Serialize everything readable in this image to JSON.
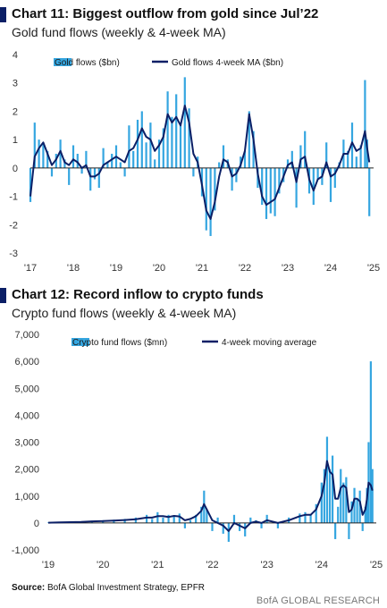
{
  "charts": [
    {
      "title": "Chart 11: Biggest outflow from gold since Jul’22",
      "subtitle": "Gold fund flows (weekly & 4-week MA)",
      "legend": {
        "bars": "Gold flows ($bn)",
        "line": "Gold flows 4-week MA ($bn)"
      },
      "y_ticks": [
        "4",
        "3",
        "2",
        "1",
        "0",
        "-1",
        "-2",
        "-3"
      ],
      "x_ticks": [
        "'17",
        "'18",
        "'19",
        "'20",
        "'21",
        "'22",
        "'23",
        "'24",
        "'25"
      ]
    },
    {
      "title": "Chart 12: Record inflow to crypto funds",
      "subtitle": "Crypto fund flows (weekly & 4-week MA)",
      "legend": {
        "bars": "Crypto fund flows ($mn)",
        "line": "4-week moving average"
      },
      "y_ticks": [
        "7,000",
        "6,000",
        "5,000",
        "4,000",
        "3,000",
        "2,000",
        "1,000",
        "0",
        "-1,000"
      ],
      "x_ticks": [
        "'19",
        "'20",
        "'21",
        "'22",
        "'23",
        "'24",
        "'25"
      ]
    }
  ],
  "footer": {
    "source_label": "Source:",
    "source_text": "BofA Global Investment Strategy, EPFR",
    "brand": "BofA GLOBAL RESEARCH"
  },
  "colors": {
    "bars": "#35a6e0",
    "line": "#0b1f66",
    "marker": "#0b1f66"
  },
  "chart_data": [
    {
      "type": "bar",
      "title": "Chart 11: Biggest outflow from gold since Jul’22",
      "subtitle": "Gold fund flows (weekly & 4-week MA)",
      "ylim": [
        -3,
        4
      ],
      "x_range": [
        2017,
        2025
      ],
      "x_ticks": [
        "'17",
        "'18",
        "'19",
        "'20",
        "'21",
        "'22",
        "'23",
        "'24",
        "'25"
      ],
      "y_ticks": [
        4,
        3,
        2,
        1,
        0,
        -1,
        -2,
        -3
      ],
      "grid": false,
      "legend_position": "top",
      "series": [
        {
          "name": "Gold flows ($bn)",
          "type": "bar",
          "x": [
            2017.0,
            2017.1,
            2017.2,
            2017.3,
            2017.4,
            2017.5,
            2017.6,
            2017.7,
            2017.8,
            2017.9,
            2018.0,
            2018.1,
            2018.2,
            2018.3,
            2018.4,
            2018.5,
            2018.6,
            2018.7,
            2018.8,
            2018.9,
            2019.0,
            2019.1,
            2019.2,
            2019.3,
            2019.4,
            2019.5,
            2019.6,
            2019.7,
            2019.8,
            2019.9,
            2020.0,
            2020.1,
            2020.2,
            2020.3,
            2020.4,
            2020.5,
            2020.6,
            2020.7,
            2020.8,
            2020.9,
            2021.0,
            2021.1,
            2021.2,
            2021.3,
            2021.4,
            2021.5,
            2021.6,
            2021.7,
            2021.8,
            2021.9,
            2022.0,
            2022.1,
            2022.2,
            2022.3,
            2022.4,
            2022.5,
            2022.6,
            2022.7,
            2022.8,
            2022.9,
            2023.0,
            2023.1,
            2023.2,
            2023.3,
            2023.4,
            2023.5,
            2023.6,
            2023.7,
            2023.8,
            2023.9,
            2024.0,
            2024.1,
            2024.2,
            2024.3,
            2024.4,
            2024.5,
            2024.6,
            2024.7,
            2024.8,
            2024.85,
            2024.9
          ],
          "values": [
            -1.2,
            1.6,
            1.0,
            0.9,
            0.6,
            -0.3,
            0.5,
            1.0,
            0.3,
            -0.6,
            0.8,
            0.5,
            -0.2,
            0.6,
            -0.8,
            -0.4,
            -0.7,
            0.7,
            0.2,
            0.5,
            0.8,
            0.2,
            -0.3,
            1.5,
            0.6,
            1.7,
            2.0,
            0.9,
            1.6,
            0.3,
            1.0,
            1.4,
            2.7,
            1.8,
            2.6,
            1.5,
            3.2,
            2.1,
            -0.3,
            0.4,
            -1.0,
            -2.2,
            -2.4,
            -1.5,
            0.2,
            0.8,
            0.3,
            -0.8,
            -0.5,
            0.4,
            0.6,
            2.0,
            1.3,
            -0.7,
            -1.3,
            -1.8,
            -1.6,
            -1.7,
            -0.9,
            -0.5,
            0.3,
            0.6,
            -1.4,
            0.8,
            1.3,
            -0.9,
            -1.3,
            -0.4,
            -0.6,
            0.9,
            -1.2,
            -0.7,
            0.2,
            1.0,
            0.6,
            1.6,
            0.4,
            0.8,
            3.1,
            1.0,
            -1.7
          ]
        },
        {
          "name": "Gold flows 4-week MA ($bn)",
          "type": "line",
          "x": [
            2017.0,
            2017.1,
            2017.2,
            2017.3,
            2017.4,
            2017.5,
            2017.6,
            2017.7,
            2017.8,
            2017.9,
            2018.0,
            2018.1,
            2018.2,
            2018.3,
            2018.4,
            2018.5,
            2018.6,
            2018.7,
            2018.8,
            2018.9,
            2019.0,
            2019.1,
            2019.2,
            2019.3,
            2019.4,
            2019.5,
            2019.6,
            2019.7,
            2019.8,
            2019.9,
            2020.0,
            2020.1,
            2020.2,
            2020.3,
            2020.4,
            2020.5,
            2020.6,
            2020.7,
            2020.8,
            2020.9,
            2021.0,
            2021.1,
            2021.2,
            2021.3,
            2021.4,
            2021.5,
            2021.6,
            2021.7,
            2021.8,
            2021.9,
            2022.0,
            2022.1,
            2022.2,
            2022.3,
            2022.4,
            2022.5,
            2022.6,
            2022.7,
            2022.8,
            2022.9,
            2023.0,
            2023.1,
            2023.2,
            2023.3,
            2023.4,
            2023.5,
            2023.6,
            2023.7,
            2023.8,
            2023.9,
            2024.0,
            2024.1,
            2024.2,
            2024.3,
            2024.4,
            2024.5,
            2024.6,
            2024.7,
            2024.8,
            2024.85,
            2024.9
          ],
          "values": [
            -1.0,
            0.4,
            0.7,
            0.9,
            0.5,
            0.1,
            0.3,
            0.6,
            0.2,
            0.1,
            0.3,
            0.2,
            0.0,
            0.1,
            -0.3,
            -0.3,
            -0.2,
            0.1,
            0.2,
            0.3,
            0.4,
            0.3,
            0.2,
            0.6,
            0.7,
            1.0,
            1.4,
            1.1,
            1.0,
            0.6,
            0.8,
            1.1,
            1.9,
            1.6,
            1.8,
            1.5,
            2.2,
            1.6,
            0.5,
            0.2,
            -0.6,
            -1.5,
            -1.8,
            -1.2,
            -0.3,
            0.3,
            0.2,
            -0.3,
            -0.2,
            0.1,
            0.6,
            1.9,
            1.0,
            -0.2,
            -1.0,
            -1.3,
            -1.2,
            -1.1,
            -0.7,
            -0.3,
            0.1,
            0.2,
            -0.5,
            0.3,
            0.4,
            -0.4,
            -0.8,
            -0.4,
            -0.3,
            0.2,
            -0.3,
            -0.2,
            0.1,
            0.5,
            0.5,
            0.9,
            0.6,
            0.7,
            1.3,
            0.7,
            0.2
          ]
        }
      ]
    },
    {
      "type": "bar",
      "title": "Chart 12: Record inflow to crypto funds",
      "subtitle": "Crypto fund flows (weekly & 4-week MA)",
      "ylim": [
        -1000,
        7000
      ],
      "x_range": [
        2019,
        2025
      ],
      "x_ticks": [
        "'19",
        "'20",
        "'21",
        "'22",
        "'23",
        "'24",
        "'25"
      ],
      "y_ticks": [
        7000,
        6000,
        5000,
        4000,
        3000,
        2000,
        1000,
        0,
        -1000
      ],
      "grid": false,
      "legend_position": "top",
      "series": [
        {
          "name": "Crypto fund flows ($mn)",
          "type": "bar",
          "x": [
            2019.0,
            2019.2,
            2019.4,
            2019.6,
            2019.8,
            2020.0,
            2020.2,
            2020.4,
            2020.6,
            2020.8,
            2020.9,
            2021.0,
            2021.1,
            2021.2,
            2021.3,
            2021.4,
            2021.5,
            2021.6,
            2021.7,
            2021.8,
            2021.85,
            2021.9,
            2022.0,
            2022.1,
            2022.2,
            2022.3,
            2022.4,
            2022.5,
            2022.6,
            2022.7,
            2022.8,
            2022.9,
            2023.0,
            2023.2,
            2023.4,
            2023.6,
            2023.7,
            2023.8,
            2023.9,
            2024.0,
            2024.05,
            2024.1,
            2024.15,
            2024.2,
            2024.25,
            2024.3,
            2024.35,
            2024.4,
            2024.45,
            2024.5,
            2024.55,
            2024.6,
            2024.65,
            2024.7,
            2024.75,
            2024.8,
            2024.83,
            2024.86,
            2024.9,
            2024.93
          ],
          "values": [
            20,
            30,
            40,
            60,
            80,
            100,
            120,
            150,
            200,
            300,
            150,
            400,
            200,
            300,
            250,
            350,
            -200,
            100,
            300,
            600,
            1200,
            500,
            -300,
            200,
            -400,
            -700,
            300,
            -300,
            -500,
            200,
            100,
            -200,
            300,
            -200,
            200,
            350,
            400,
            300,
            700,
            1500,
            2000,
            3200,
            2000,
            2500,
            -600,
            600,
            2000,
            1500,
            1700,
            -600,
            800,
            1300,
            900,
            1200,
            -300,
            600,
            1300,
            3000,
            6000,
            2000
          ]
        },
        {
          "name": "4-week moving average",
          "type": "line",
          "x": [
            2019.0,
            2019.2,
            2019.4,
            2019.6,
            2019.8,
            2020.0,
            2020.2,
            2020.4,
            2020.6,
            2020.8,
            2020.9,
            2021.0,
            2021.1,
            2021.2,
            2021.3,
            2021.4,
            2021.5,
            2021.6,
            2021.7,
            2021.8,
            2021.85,
            2021.9,
            2022.0,
            2022.1,
            2022.2,
            2022.3,
            2022.4,
            2022.5,
            2022.6,
            2022.7,
            2022.8,
            2022.9,
            2023.0,
            2023.2,
            2023.4,
            2023.6,
            2023.7,
            2023.8,
            2023.9,
            2024.0,
            2024.05,
            2024.1,
            2024.15,
            2024.2,
            2024.25,
            2024.3,
            2024.35,
            2024.4,
            2024.45,
            2024.5,
            2024.55,
            2024.6,
            2024.65,
            2024.7,
            2024.75,
            2024.8,
            2024.83,
            2024.86,
            2024.9,
            2024.93
          ],
          "values": [
            10,
            20,
            30,
            40,
            60,
            70,
            90,
            110,
            140,
            200,
            200,
            250,
            250,
            220,
            260,
            240,
            100,
            150,
            250,
            450,
            700,
            500,
            100,
            0,
            -100,
            -300,
            0,
            -100,
            -200,
            0,
            50,
            0,
            100,
            0,
            100,
            250,
            300,
            300,
            500,
            1000,
            1500,
            2300,
            1900,
            1800,
            900,
            900,
            1300,
            1400,
            1300,
            400,
            500,
            900,
            900,
            800,
            300,
            500,
            900,
            1500,
            1400,
            1200
          ]
        }
      ]
    }
  ]
}
